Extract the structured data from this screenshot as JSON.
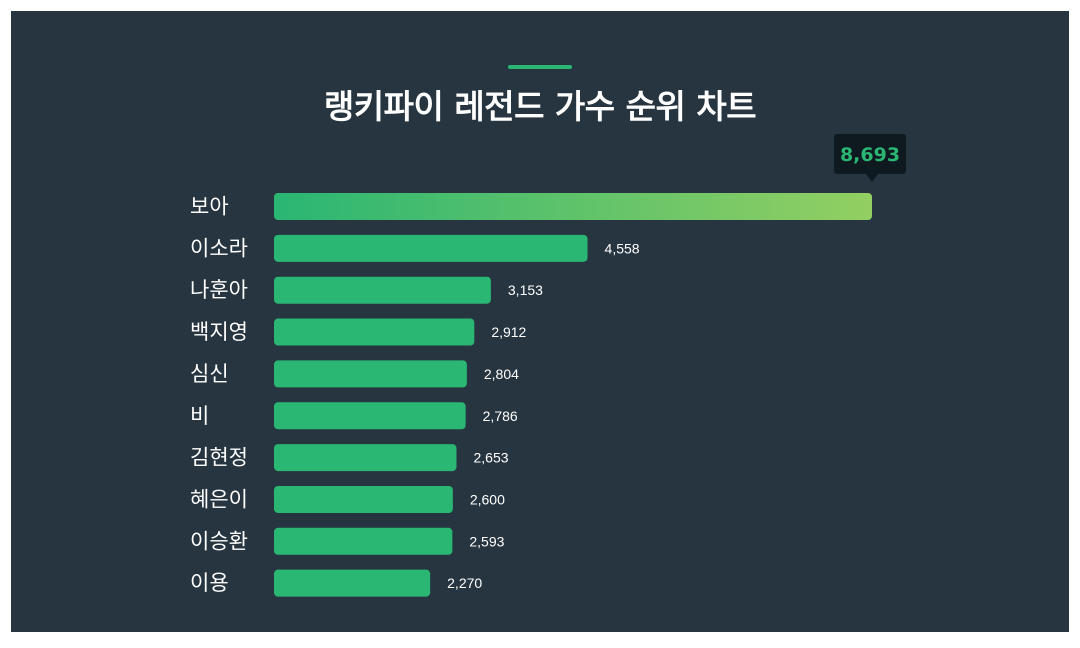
{
  "colors": {
    "background": "#263540",
    "bar": "#2ab673",
    "bar_gradient_end": "#93cf62",
    "accent": "#2ab673",
    "tooltip_bg": "#0f1a20",
    "tooltip_text": "#2ab673"
  },
  "chart_data": {
    "type": "bar",
    "orientation": "horizontal",
    "title": "랭키파이 레전드 가수 순위 차트",
    "categories": [
      "보아",
      "이소라",
      "나훈아",
      "백지영",
      "심신",
      "비",
      "김현정",
      "혜은이",
      "이승환",
      "이용"
    ],
    "values": [
      8693,
      4558,
      3153,
      2912,
      2804,
      2786,
      2653,
      2600,
      2593,
      2270
    ],
    "value_labels": [
      "8,693",
      "4,558",
      "3,153",
      "2,912",
      "2,804",
      "2,786",
      "2,653",
      "2,600",
      "2,593",
      "2,270"
    ],
    "xlim": [
      0,
      8693
    ],
    "grid": false,
    "legend": "none",
    "highlight": "top bar shown with gradient fill and value callout above"
  }
}
